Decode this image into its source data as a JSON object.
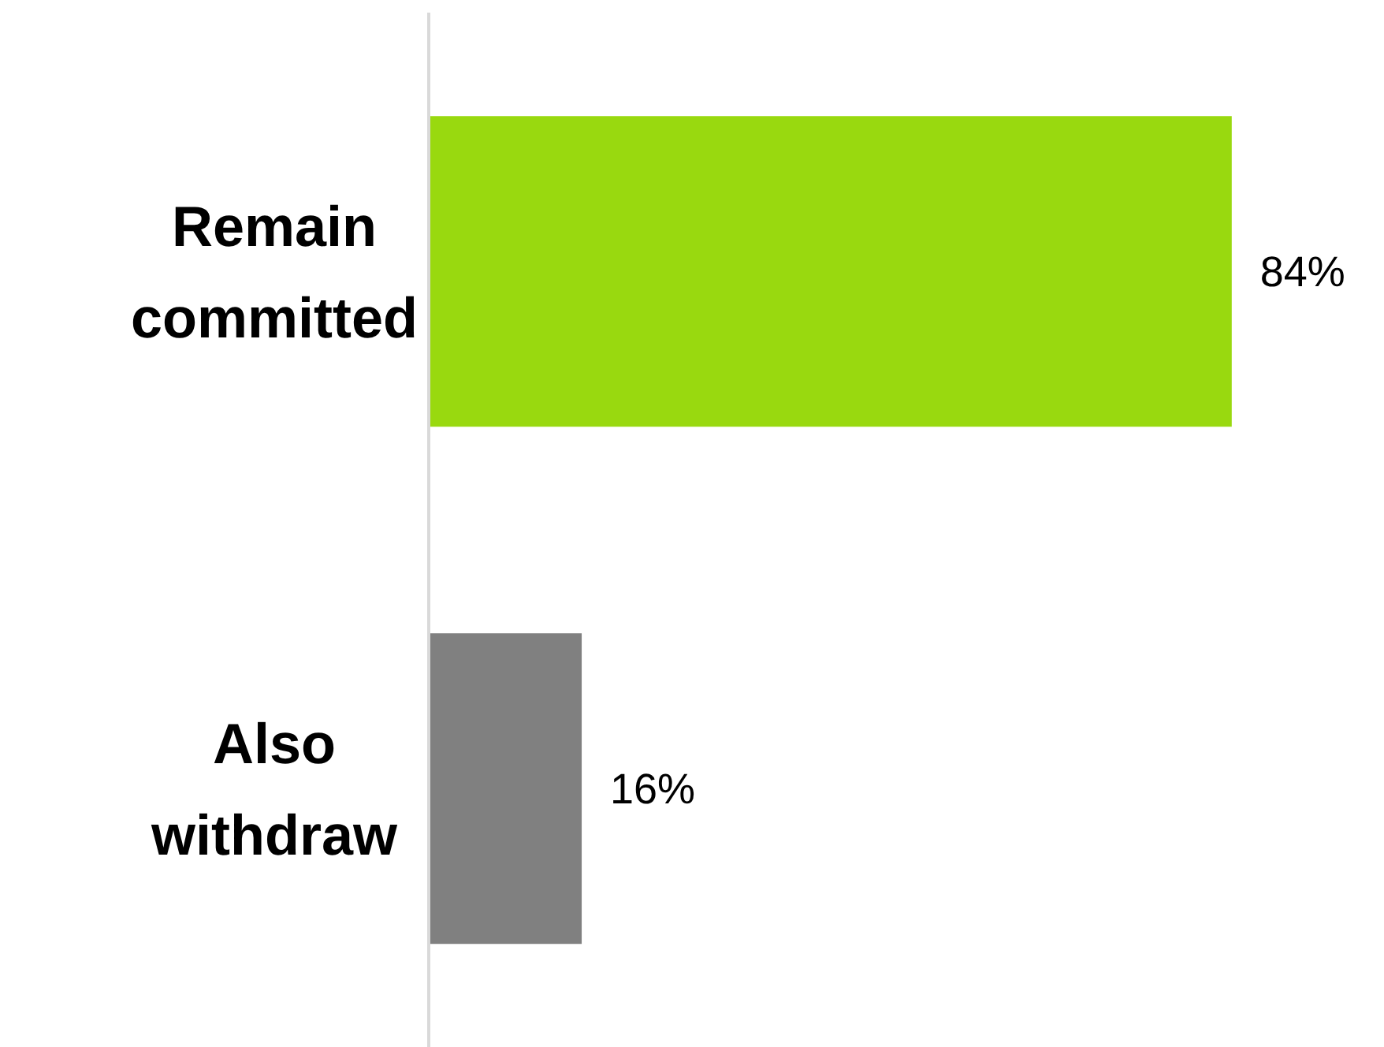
{
  "chart_data": {
    "type": "bar",
    "orientation": "horizontal",
    "categories": [
      "Remain committed",
      "Also withdraw"
    ],
    "values": [
      84,
      16
    ],
    "colors": [
      "#99d90f",
      "#808080"
    ],
    "value_labels": [
      "84%",
      "16%"
    ]
  }
}
